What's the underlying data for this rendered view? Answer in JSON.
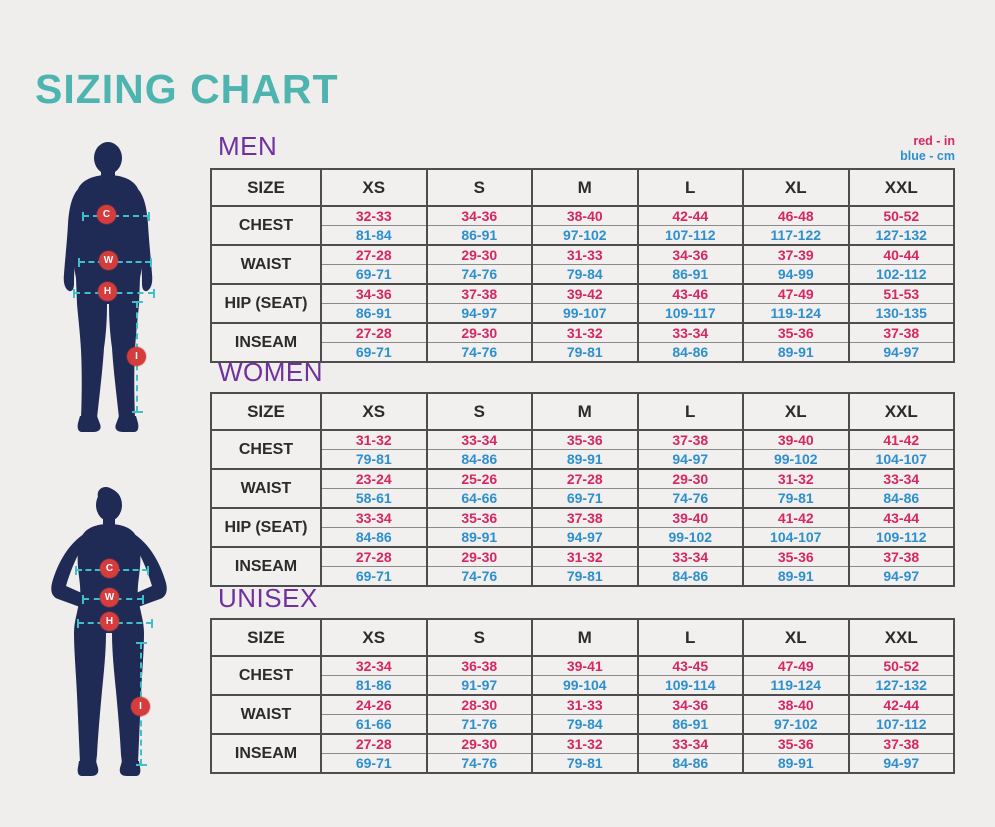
{
  "title": "SIZING CHART",
  "legend": {
    "red": "red - in",
    "blue": "blue - cm"
  },
  "colors": {
    "title_teal": "#4db4b0",
    "section_purple": "#7030a0",
    "inches_red": "#d62663",
    "cm_blue": "#2e8fce",
    "silhouette_navy": "#1f2a55",
    "marker_red": "#d53c3c",
    "dash_teal": "#3fbfc9",
    "background": "#efeeec",
    "table_border": "#4d4d4d"
  },
  "figures": {
    "male": {
      "markers": [
        "C",
        "W",
        "H",
        "I"
      ]
    },
    "female": {
      "markers": [
        "C",
        "W",
        "H",
        "I"
      ]
    }
  },
  "chart_data": [
    {
      "type": "table",
      "title": "MEN",
      "size_header": "SIZE",
      "columns": [
        "XS",
        "S",
        "M",
        "L",
        "XL",
        "XXL"
      ],
      "rows": [
        {
          "label": "CHEST",
          "in": [
            "32-33",
            "34-36",
            "38-40",
            "42-44",
            "46-48",
            "50-52"
          ],
          "cm": [
            "81-84",
            "86-91",
            "97-102",
            "107-112",
            "117-122",
            "127-132"
          ]
        },
        {
          "label": "WAIST",
          "in": [
            "27-28",
            "29-30",
            "31-33",
            "34-36",
            "37-39",
            "40-44"
          ],
          "cm": [
            "69-71",
            "74-76",
            "79-84",
            "86-91",
            "94-99",
            "102-112"
          ]
        },
        {
          "label": "HIP (SEAT)",
          "in": [
            "34-36",
            "37-38",
            "39-42",
            "43-46",
            "47-49",
            "51-53"
          ],
          "cm": [
            "86-91",
            "94-97",
            "99-107",
            "109-117",
            "119-124",
            "130-135"
          ]
        },
        {
          "label": "INSEAM",
          "in": [
            "27-28",
            "29-30",
            "31-32",
            "33-34",
            "35-36",
            "37-38"
          ],
          "cm": [
            "69-71",
            "74-76",
            "79-81",
            "84-86",
            "89-91",
            "94-97"
          ]
        }
      ]
    },
    {
      "type": "table",
      "title": "WOMEN",
      "size_header": "SIZE",
      "columns": [
        "XS",
        "S",
        "M",
        "L",
        "XL",
        "XXL"
      ],
      "rows": [
        {
          "label": "CHEST",
          "in": [
            "31-32",
            "33-34",
            "35-36",
            "37-38",
            "39-40",
            "41-42"
          ],
          "cm": [
            "79-81",
            "84-86",
            "89-91",
            "94-97",
            "99-102",
            "104-107"
          ]
        },
        {
          "label": "WAIST",
          "in": [
            "23-24",
            "25-26",
            "27-28",
            "29-30",
            "31-32",
            "33-34"
          ],
          "cm": [
            "58-61",
            "64-66",
            "69-71",
            "74-76",
            "79-81",
            "84-86"
          ]
        },
        {
          "label": "HIP (SEAT)",
          "in": [
            "33-34",
            "35-36",
            "37-38",
            "39-40",
            "41-42",
            "43-44"
          ],
          "cm": [
            "84-86",
            "89-91",
            "94-97",
            "99-102",
            "104-107",
            "109-112"
          ]
        },
        {
          "label": "INSEAM",
          "in": [
            "27-28",
            "29-30",
            "31-32",
            "33-34",
            "35-36",
            "37-38"
          ],
          "cm": [
            "69-71",
            "74-76",
            "79-81",
            "84-86",
            "89-91",
            "94-97"
          ]
        }
      ]
    },
    {
      "type": "table",
      "title": "UNISEX",
      "size_header": "SIZE",
      "columns": [
        "XS",
        "S",
        "M",
        "L",
        "XL",
        "XXL"
      ],
      "rows": [
        {
          "label": "CHEST",
          "in": [
            "32-34",
            "36-38",
            "39-41",
            "43-45",
            "47-49",
            "50-52"
          ],
          "cm": [
            "81-86",
            "91-97",
            "99-104",
            "109-114",
            "119-124",
            "127-132"
          ]
        },
        {
          "label": "WAIST",
          "in": [
            "24-26",
            "28-30",
            "31-33",
            "34-36",
            "38-40",
            "42-44"
          ],
          "cm": [
            "61-66",
            "71-76",
            "79-84",
            "86-91",
            "97-102",
            "107-112"
          ]
        },
        {
          "label": "INSEAM",
          "in": [
            "27-28",
            "29-30",
            "31-32",
            "33-34",
            "35-36",
            "37-38"
          ],
          "cm": [
            "69-71",
            "74-76",
            "79-81",
            "84-86",
            "89-91",
            "94-97"
          ]
        }
      ]
    }
  ]
}
